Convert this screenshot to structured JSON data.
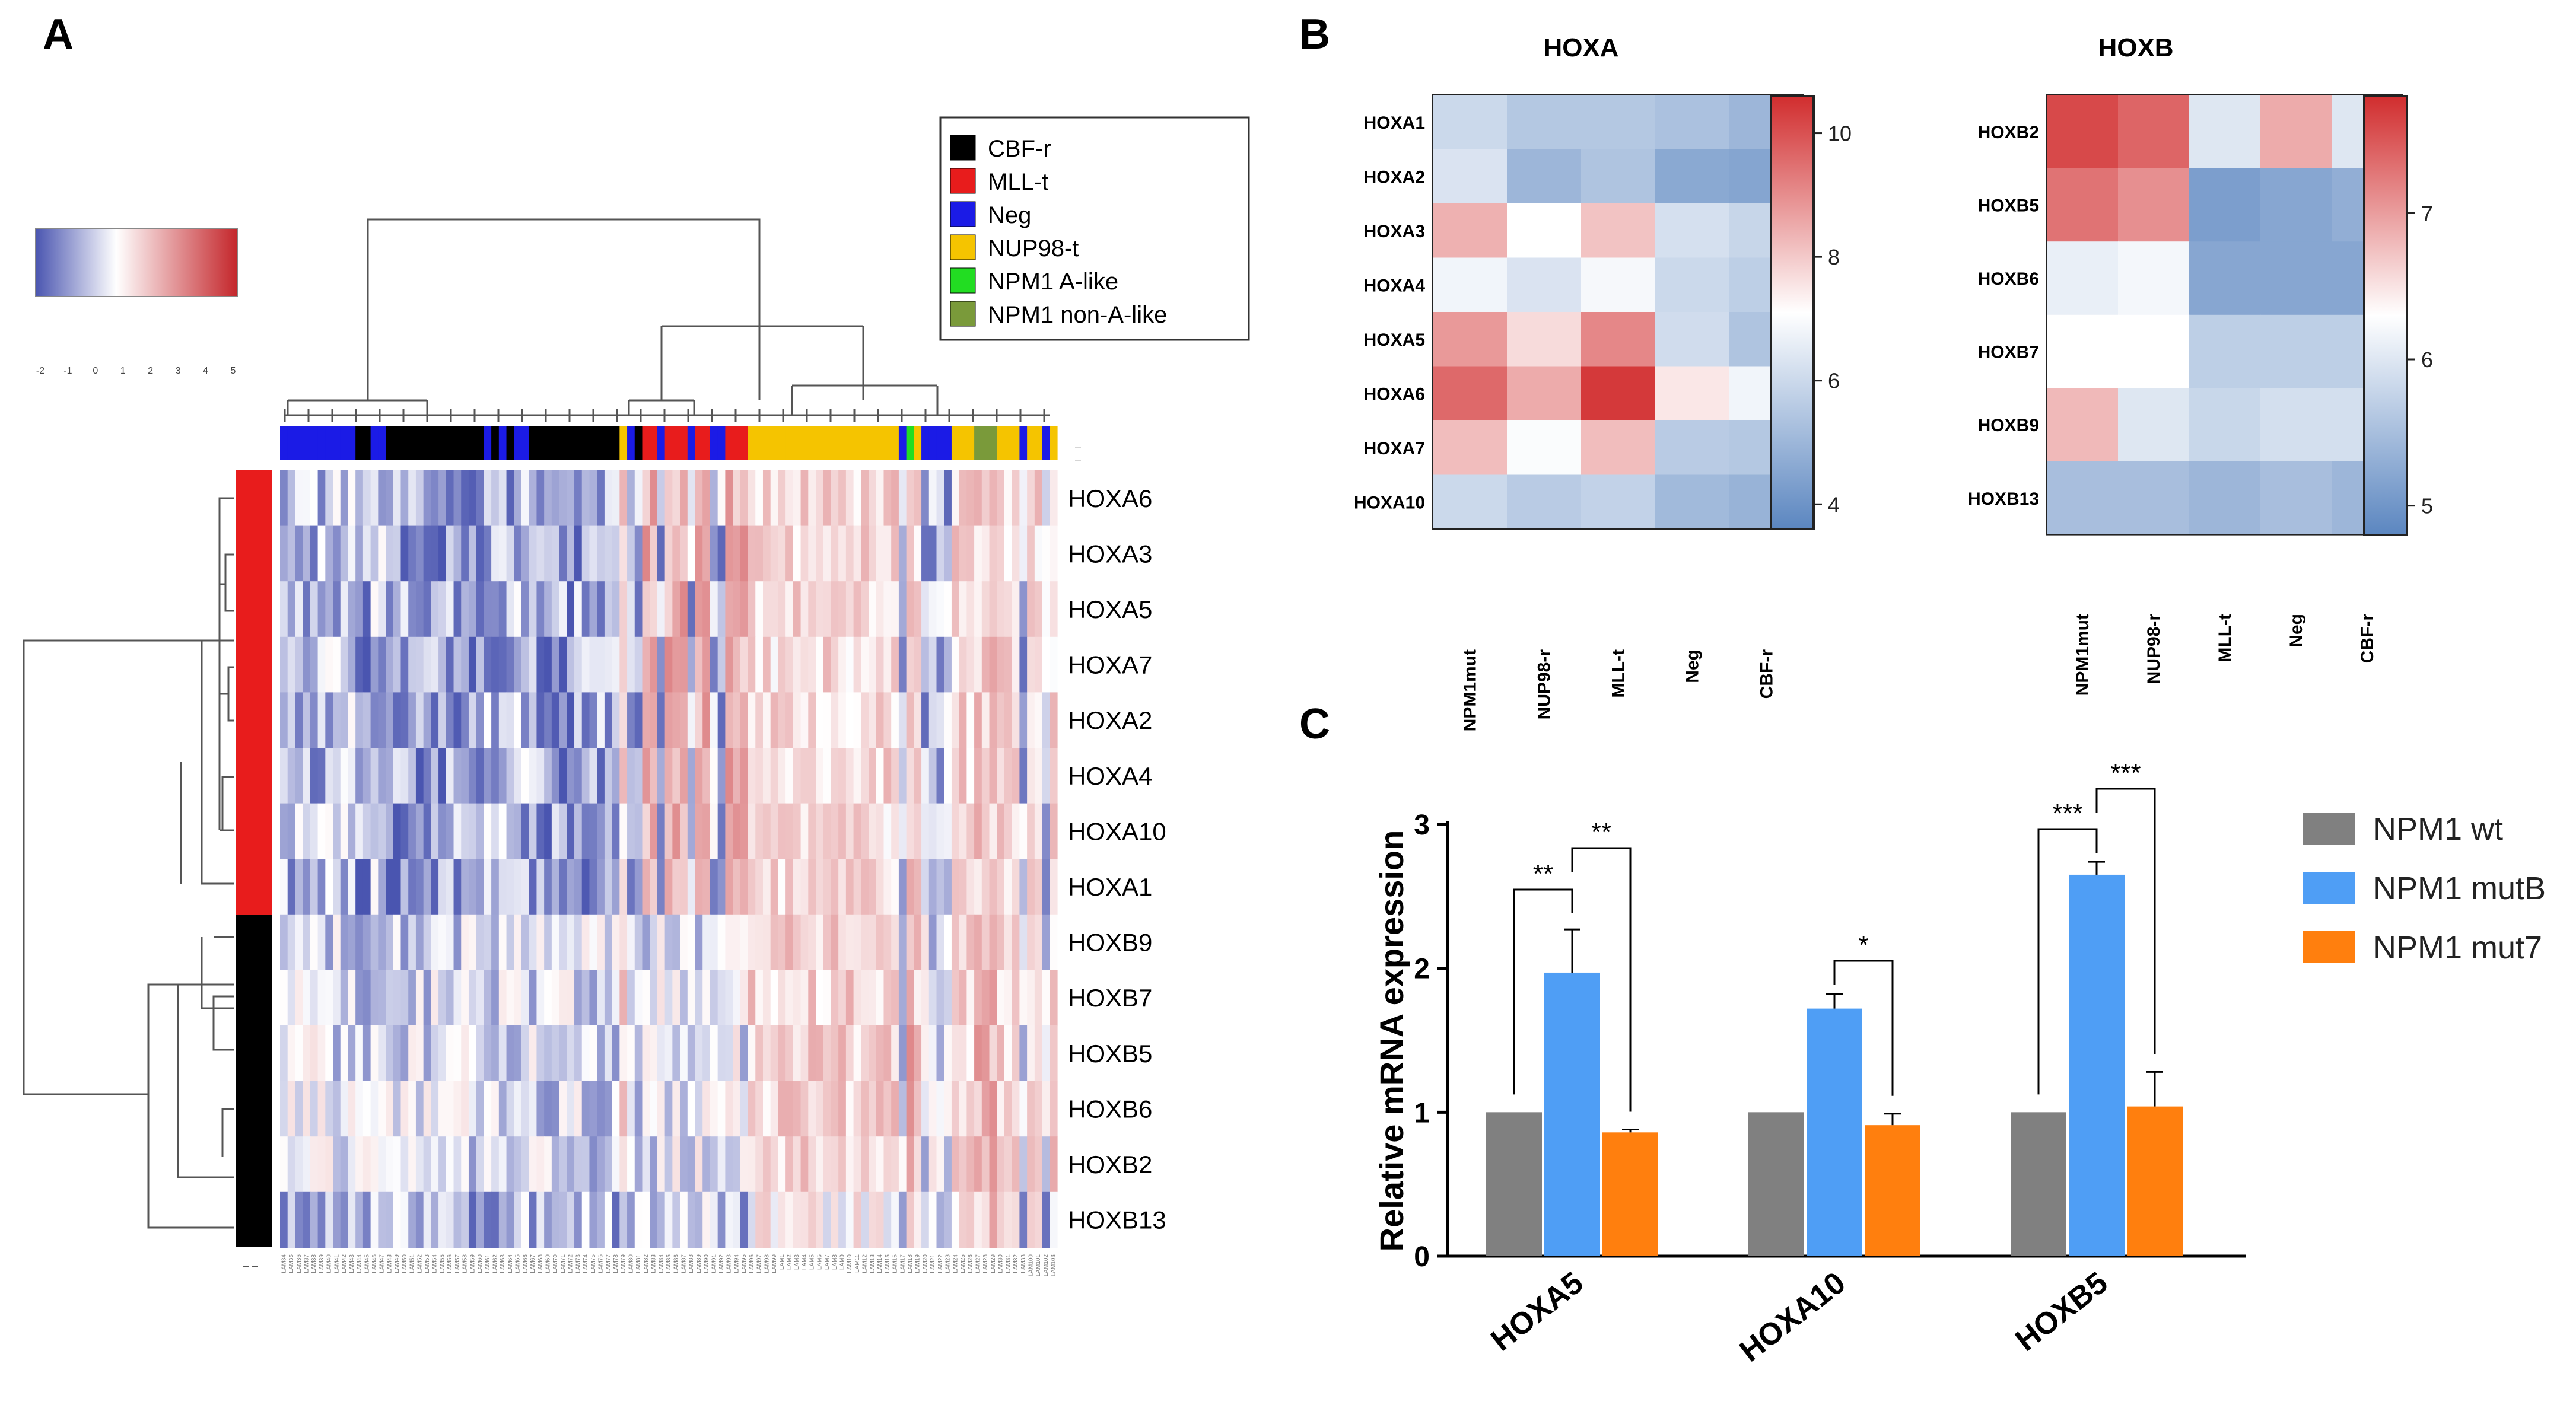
{
  "panels": {
    "A": "A",
    "B": "B",
    "C": "C"
  },
  "panel_a": {
    "scale_ticks": [
      "-2",
      "-1",
      "0",
      "1",
      "2",
      "3",
      "4",
      "5"
    ],
    "scale_colors": {
      "low": "#4a55b0",
      "mid": "#ffffff",
      "high": "#c4262b"
    },
    "legend": [
      {
        "label": "CBF-r",
        "color": "#000000"
      },
      {
        "label": "MLL-t",
        "color": "#e81c1c"
      },
      {
        "label": "Neg",
        "color": "#1b1be6"
      },
      {
        "label": "NUP98-t",
        "color": "#f5c400"
      },
      {
        "label": "NPM1 A-like",
        "color": "#22dd22"
      },
      {
        "label": "NPM1 non-A-like",
        "color": "#7a9a3a"
      }
    ],
    "genes": [
      "HOXA6",
      "HOXA3",
      "HOXA5",
      "HOXA7",
      "HOXA2",
      "HOXA4",
      "HOXA10",
      "HOXA1",
      "HOXB9",
      "HOXB7",
      "HOXB5",
      "HOXB6",
      "HOXB2",
      "HOXB13"
    ],
    "row_cluster_colors": {
      "HOXA": "#e81c1c",
      "HOXB": "#000000"
    },
    "sample_groups": [
      "Neg",
      "Neg",
      "Neg",
      "Neg",
      "Neg",
      "Neg",
      "Neg",
      "Neg",
      "Neg",
      "Neg",
      "CBF-r",
      "CBF-r",
      "Neg",
      "Neg",
      "CBF-r",
      "CBF-r",
      "CBF-r",
      "CBF-r",
      "CBF-r",
      "CBF-r",
      "CBF-r",
      "CBF-r",
      "CBF-r",
      "CBF-r",
      "CBF-r",
      "CBF-r",
      "CBF-r",
      "Neg",
      "CBF-r",
      "Neg",
      "CBF-r",
      "Neg",
      "Neg",
      "CBF-r",
      "CBF-r",
      "CBF-r",
      "CBF-r",
      "CBF-r",
      "CBF-r",
      "CBF-r",
      "CBF-r",
      "CBF-r",
      "CBF-r",
      "CBF-r",
      "CBF-r",
      "NUP98-t",
      "Neg",
      "CBF-r",
      "MLL-t",
      "MLL-t",
      "Neg",
      "MLL-t",
      "MLL-t",
      "MLL-t",
      "Neg",
      "MLL-t",
      "MLL-t",
      "Neg",
      "Neg",
      "MLL-t",
      "MLL-t",
      "MLL-t",
      "NUP98-t",
      "NUP98-t",
      "NUP98-t",
      "NUP98-t",
      "NUP98-t",
      "NUP98-t",
      "NUP98-t",
      "NUP98-t",
      "NUP98-t",
      "NUP98-t",
      "NUP98-t",
      "NUP98-t",
      "NUP98-t",
      "NUP98-t",
      "NUP98-t",
      "NUP98-t",
      "NUP98-t",
      "NUP98-t",
      "NUP98-t",
      "NUP98-t",
      "Neg",
      "NPM1 A-like",
      "NUP98-t",
      "Neg",
      "Neg",
      "Neg",
      "Neg",
      "NUP98-t",
      "NUP98-t",
      "NUP98-t",
      "NPM1 non-A-like",
      "NPM1 non-A-like",
      "NPM1 non-A-like",
      "NUP98-t",
      "NUP98-t",
      "NUP98-t",
      "Neg",
      "NUP98-t",
      "NUP98-t",
      "Neg",
      "NUP98-t"
    ],
    "sample_labels": [
      "LAM34",
      "LAM35",
      "LAM36",
      "LAM37",
      "LAM38",
      "LAM39",
      "LAM40",
      "LAM41",
      "LAM42",
      "LAM43",
      "LAM44",
      "LAM45",
      "LAM46",
      "LAM47",
      "LAM48",
      "LAM49",
      "LAM50",
      "LAM51",
      "LAM52",
      "LAM53",
      "LAM54",
      "LAM55",
      "LAM56",
      "LAM57",
      "LAM58",
      "LAM59",
      "LAM60",
      "LAM61",
      "LAM62",
      "LAM63",
      "LAM64",
      "LAM65",
      "LAM66",
      "LAM67",
      "LAM68",
      "LAM69",
      "LAM70",
      "LAM71",
      "LAM72",
      "LAM73",
      "LAM74",
      "LAM75",
      "LAM76",
      "LAM77",
      "LAM78",
      "LAM79",
      "LAM80",
      "LAM81",
      "LAM82",
      "LAM83",
      "LAM84",
      "LAM85",
      "LAM86",
      "LAM87",
      "LAM88",
      "LAM89",
      "LAM90",
      "LAM91",
      "LAM92",
      "LAM93",
      "LAM94",
      "LAM95",
      "LAM96",
      "LAM97",
      "LAM98",
      "LAM99",
      "LAM1",
      "LAM2",
      "LAM3",
      "LAM4",
      "LAM5",
      "LAM6",
      "LAM7",
      "LAM8",
      "LAM9",
      "LAM10",
      "LAM11",
      "LAM12",
      "LAM13",
      "LAM14",
      "LAM15",
      "LAM16",
      "LAM17",
      "LAM18",
      "LAM19",
      "LAM20",
      "LAM21",
      "LAM22",
      "LAM23",
      "LAM24",
      "LAM25",
      "LAM26",
      "LAM27",
      "LAM28",
      "LAM29",
      "LAM30",
      "LAM31",
      "LAM32",
      "LAM33",
      "LAM100",
      "LAM101",
      "LAM102",
      "LAM103"
    ]
  },
  "chart_data": [
    {
      "type": "heatmap",
      "title": "HOXA",
      "rows": [
        "HOXA1",
        "HOXA2",
        "HOXA3",
        "HOXA4",
        "HOXA5",
        "HOXA6",
        "HOXA7",
        "HOXA10"
      ],
      "columns": [
        "NPM1mut",
        "NUP98-r",
        "MLL-t",
        "Neg",
        "CBF-r"
      ],
      "values": [
        [
          6.0,
          5.5,
          5.5,
          5.3,
          5.0
        ],
        [
          6.3,
          5.0,
          5.4,
          4.6,
          4.5
        ],
        [
          8.4,
          7.1,
          8.1,
          6.2,
          5.9
        ],
        [
          6.8,
          6.3,
          6.9,
          6.0,
          5.7
        ],
        [
          8.8,
          7.7,
          9.1,
          6.1,
          5.4
        ],
        [
          9.6,
          8.5,
          10.4,
          7.5,
          6.8
        ],
        [
          8.2,
          7.0,
          8.2,
          5.6,
          5.5
        ],
        [
          6.0,
          5.6,
          5.8,
          5.1,
          4.9
        ]
      ],
      "colorbar": {
        "ticks": [
          4,
          6,
          8,
          10
        ],
        "range": [
          3.6,
          10.6
        ]
      }
    },
    {
      "type": "heatmap",
      "title": "HOXB",
      "rows": [
        "HOXB2",
        "HOXB5",
        "HOXB6",
        "HOXB7",
        "HOXB9",
        "HOXB13"
      ],
      "columns": [
        "NPM1mut",
        "NUP98-r",
        "MLL-t",
        "Neg",
        "CBF-r"
      ],
      "values": [
        [
          7.6,
          7.4,
          6.0,
          6.9,
          6.0
        ],
        [
          7.3,
          7.1,
          5.1,
          5.2,
          5.3
        ],
        [
          6.1,
          6.2,
          5.2,
          5.2,
          5.2
        ],
        [
          6.3,
          6.3,
          5.7,
          5.7,
          5.7
        ],
        [
          6.8,
          6.0,
          5.8,
          5.9,
          5.9
        ],
        [
          5.5,
          5.5,
          5.4,
          5.5,
          5.4
        ]
      ],
      "colorbar": {
        "ticks": [
          5,
          6,
          7
        ],
        "range": [
          4.8,
          7.8
        ]
      }
    },
    {
      "type": "bar",
      "categories": [
        "HOXA5",
        "HOXA10",
        "HOXB5"
      ],
      "series": [
        {
          "name": "NPM1 wt",
          "color": "#808080",
          "values": [
            1.0,
            1.0,
            1.0
          ],
          "errors": [
            0,
            0,
            0
          ]
        },
        {
          "name": "NPM1 mutB",
          "color": "#4f9ef5",
          "values": [
            1.97,
            1.72,
            2.65
          ],
          "errors": [
            0.3,
            0.1,
            0.09
          ]
        },
        {
          "name": "NPM1 mut7",
          "color": "#ff7f0e",
          "values": [
            0.86,
            0.91,
            1.04
          ],
          "errors": [
            0.02,
            0.08,
            0.24
          ]
        }
      ],
      "ylabel": "Relative mRNA expression",
      "ylim": [
        0,
        3
      ],
      "yticks": [
        0,
        1,
        2,
        3
      ],
      "significance": [
        {
          "category": "HOXA5",
          "pair": "wt-mutB",
          "label": "**"
        },
        {
          "category": "HOXA5",
          "pair": "mutB-mut7",
          "label": "**"
        },
        {
          "category": "HOXA10",
          "pair": "mutB-mut7",
          "label": "*"
        },
        {
          "category": "HOXB5",
          "pair": "wt-mutB",
          "label": "***"
        },
        {
          "category": "HOXB5",
          "pair": "mutB-mut7",
          "label": "***"
        }
      ]
    }
  ]
}
